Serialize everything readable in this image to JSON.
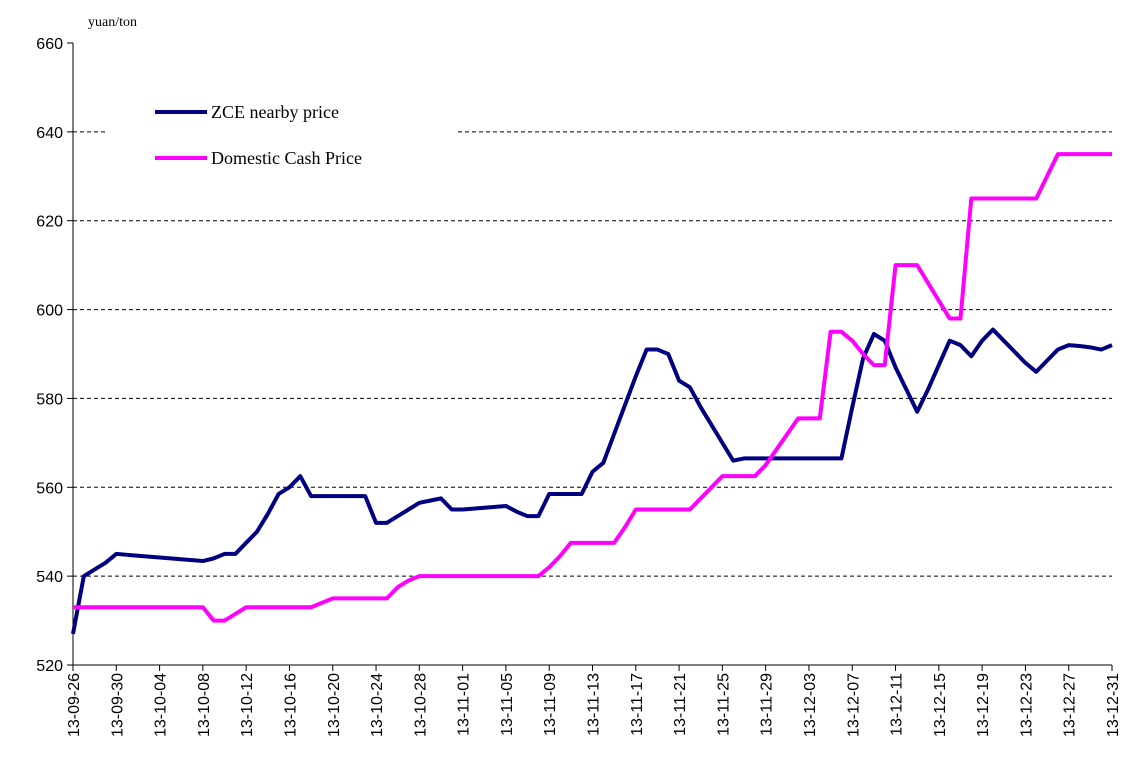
{
  "chart_data": {
    "type": "line",
    "y_label": "yuan/ton",
    "categories": [
      "13-09-26",
      null,
      null,
      null,
      "13-09-30",
      null,
      null,
      null,
      "13-10-04",
      null,
      null,
      null,
      "13-10-08",
      null,
      null,
      null,
      "13-10-12",
      null,
      null,
      null,
      "13-10-16",
      null,
      null,
      null,
      "13-10-20",
      null,
      null,
      null,
      "13-10-24",
      null,
      null,
      null,
      "13-10-28",
      null,
      null,
      null,
      "13-11-01",
      null,
      null,
      null,
      "13-11-05",
      null,
      null,
      null,
      "13-11-09",
      null,
      null,
      null,
      "13-11-13",
      null,
      null,
      null,
      "13-11-17",
      null,
      null,
      null,
      "13-11-21",
      null,
      null,
      null,
      "13-11-25",
      null,
      null,
      null,
      "13-11-29",
      null,
      null,
      null,
      "13-12-03",
      null,
      null,
      null,
      "13-12-07",
      null,
      null,
      null,
      "13-12-11",
      null,
      null,
      null,
      "13-12-15",
      null,
      null,
      null,
      "13-12-19",
      null,
      null,
      null,
      "13-12-23",
      null,
      null,
      null,
      "13-12-27",
      null,
      null,
      null,
      "13-12-31"
    ],
    "series": [
      {
        "name": "ZCE nearby price",
        "color": "#000080",
        "values": [
          527,
          540,
          541.5,
          543,
          545,
          544.8,
          544.6,
          544.4,
          544.2,
          544,
          543.8,
          543.6,
          543.4,
          544,
          545,
          545,
          547.5,
          550,
          554,
          558.5,
          560,
          562.5,
          558,
          558,
          558,
          558,
          558,
          558,
          552,
          552,
          553.5,
          555,
          556.5,
          557,
          557.5,
          555,
          555,
          555.2,
          555.4,
          555.6,
          555.8,
          554.5,
          553.5,
          553.5,
          558.5,
          558.5,
          558.5,
          558.5,
          563.5,
          565.5,
          572,
          578.5,
          585,
          591,
          591,
          590,
          584,
          582.5,
          578,
          574,
          570,
          566,
          566.5,
          566.5,
          566.5,
          566.5,
          566.5,
          566.5,
          566.5,
          566.5,
          566.5,
          566.5,
          578,
          589,
          594.5,
          593,
          587,
          582,
          577,
          582,
          587.5,
          593,
          592,
          589.5,
          593,
          595.5,
          593,
          590.5,
          588,
          586,
          588.5,
          591,
          592,
          591.8,
          591.5,
          591,
          592
        ]
      },
      {
        "name": "Domestic Cash Price",
        "color": "#ff00ff",
        "values": [
          533,
          533,
          533,
          533,
          533,
          533,
          533,
          533,
          533,
          533,
          533,
          533,
          533,
          530,
          530,
          531.5,
          533,
          533,
          533,
          533,
          533,
          533,
          533,
          534,
          535,
          535,
          535,
          535,
          535,
          535,
          537.5,
          539,
          540,
          540,
          540,
          540,
          540,
          540,
          540,
          540,
          540,
          540,
          540,
          540,
          542,
          544.5,
          547.5,
          547.5,
          547.5,
          547.5,
          547.5,
          551,
          555,
          555,
          555,
          555,
          555,
          555,
          557.5,
          560,
          562.5,
          562.5,
          562.5,
          562.5,
          565,
          568.5,
          572,
          575.5,
          575.5,
          575.5,
          595,
          595,
          593,
          590,
          587.5,
          587.5,
          610,
          610,
          610,
          606,
          602,
          598,
          598,
          625,
          625,
          625,
          625,
          625,
          625,
          625,
          630,
          635,
          635,
          635,
          635,
          635,
          635
        ]
      }
    ],
    "ylim": [
      520,
      660
    ],
    "yticks": [
      520,
      540,
      560,
      580,
      600,
      620,
      640,
      660
    ],
    "grid": true,
    "legend": "upper left"
  }
}
